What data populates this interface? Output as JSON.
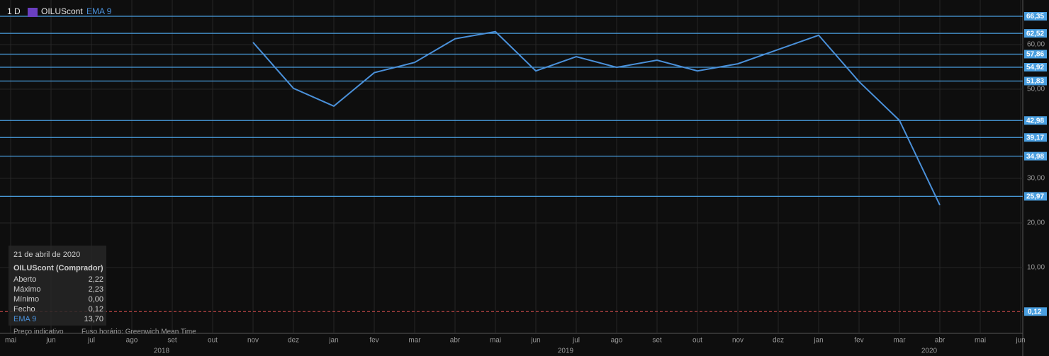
{
  "chart_data": {
    "type": "line",
    "header": {
      "interval": "1 D",
      "symbol": "OILUScont",
      "indicator": "EMA 9"
    },
    "categories": [
      "mai",
      "jun",
      "jul",
      "ago",
      "set",
      "out",
      "nov",
      "dez",
      "jan",
      "fev",
      "mar",
      "abr",
      "mai",
      "jun",
      "jul",
      "ago",
      "set",
      "out",
      "nov",
      "dez",
      "jan",
      "fev",
      "mar",
      "abr",
      "mai",
      "jun"
    ],
    "years": [
      {
        "label": "2018",
        "category": 4
      },
      {
        "label": "2019",
        "category": 14
      },
      {
        "label": "2020",
        "category": 23
      }
    ],
    "series": [
      {
        "name": "EMA 9",
        "color": "#4a90d9",
        "values": [
          null,
          null,
          null,
          null,
          null,
          null,
          60.5,
          50.2,
          46.2,
          53.7,
          56,
          61.3,
          62.9,
          54.1,
          57.3,
          54.9,
          56.5,
          54.1,
          55.7,
          58.9,
          62.1,
          51.7,
          43,
          24,
          null,
          null
        ]
      }
    ],
    "ylim": [
      -4.6,
      70
    ],
    "yticks": [
      {
        "value": 10,
        "label": "10,00"
      },
      {
        "value": 20,
        "label": "20,00"
      },
      {
        "value": 30,
        "label": "30,00"
      },
      {
        "value": 50,
        "label": "50,00"
      },
      {
        "value": 60,
        "label": "60,00"
      }
    ],
    "levels": [
      {
        "value": 66.35,
        "label": "66,35"
      },
      {
        "value": 62.52,
        "label": "62,52"
      },
      {
        "value": 57.86,
        "label": "57,86"
      },
      {
        "value": 54.92,
        "label": "54,92"
      },
      {
        "value": 51.83,
        "label": "51,83"
      },
      {
        "value": 42.98,
        "label": "42,98"
      },
      {
        "value": 39.17,
        "label": "39,17"
      },
      {
        "value": 34.98,
        "label": "34,98"
      },
      {
        "value": 25.97,
        "label": "25,97"
      }
    ],
    "level_color": "#4a9fe0",
    "last_price": {
      "value": 0.12,
      "label": "0,12"
    },
    "grid": true
  },
  "info_panel": {
    "date": "21 de abril de 2020",
    "title": "OILUScont (Comprador)",
    "rows": [
      [
        "Aberto",
        "2,22"
      ],
      [
        "Máximo",
        "2,23"
      ],
      [
        "Mínimo",
        "0,00"
      ],
      [
        "Fecho",
        "0,12"
      ],
      [
        "EMA 9",
        "13,70"
      ]
    ]
  },
  "footer": {
    "note": "Preço indicativo",
    "timezone": "Fuso horário: Greenwich Mean Time"
  }
}
